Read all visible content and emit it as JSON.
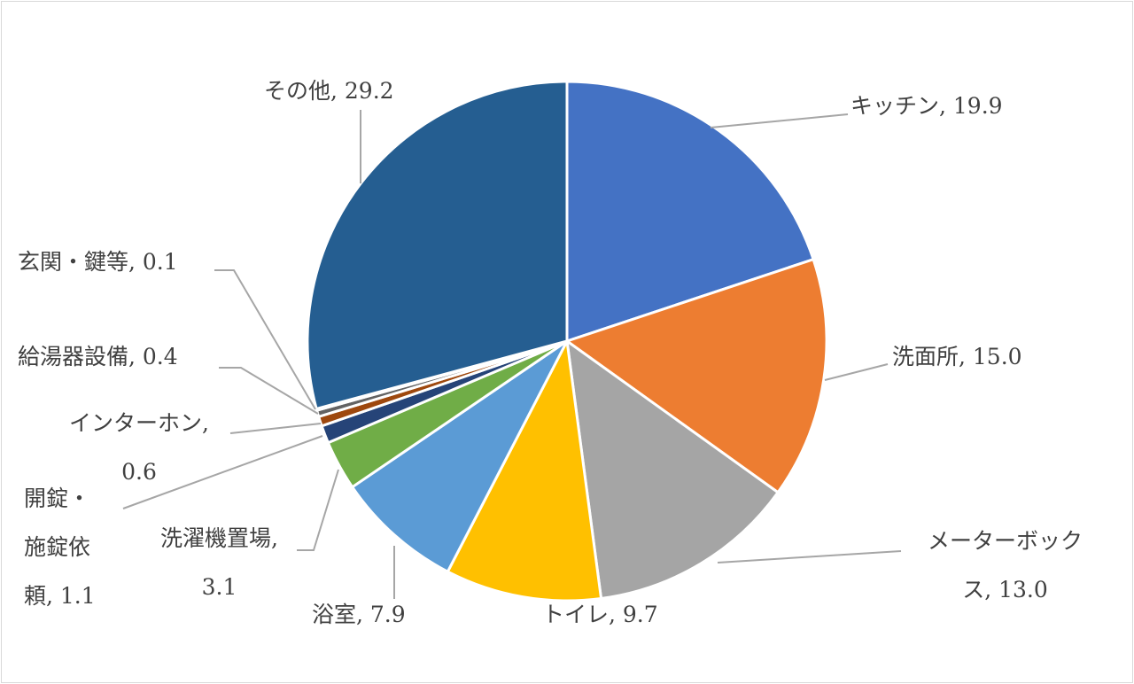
{
  "chart_data": {
    "type": "pie",
    "title": "",
    "start_angle": "12 o'clock",
    "direction": "clockwise",
    "slices": [
      {
        "label": "キッチン",
        "value": 19.9,
        "color": "#4472C4",
        "text": "キッチン, 19.9"
      },
      {
        "label": "洗面所",
        "value": 15.0,
        "color": "#ED7D31",
        "text": "洗面所, 15.0"
      },
      {
        "label": "メーターボックス",
        "value": 13.0,
        "color": "#A5A5A5",
        "text1": "メーターボック",
        "text2": "ス, 13.0"
      },
      {
        "label": "トイレ",
        "value": 9.7,
        "color": "#FFC000",
        "text": "トイレ, 9.7"
      },
      {
        "label": "浴室",
        "value": 7.9,
        "color": "#5B9BD5",
        "text": "浴室, 7.9"
      },
      {
        "label": "洗濯機置場",
        "value": 3.1,
        "color": "#70AD47",
        "text1": "洗濯機置場,",
        "text2": "3.1"
      },
      {
        "label": "開錠・施錠依頼",
        "value": 1.1,
        "color": "#264478",
        "text1": "開錠・",
        "text2": "施錠依",
        "text3": "頼, 1.1"
      },
      {
        "label": "インターホン",
        "value": 0.6,
        "color": "#9E480E",
        "text1": "インターホン,",
        "text2": "0.6"
      },
      {
        "label": "給湯器設備",
        "value": 0.4,
        "color": "#636363",
        "text": "給湯器設備, 0.4"
      },
      {
        "label": "玄関・鍵等",
        "value": 0.1,
        "color": "#997300",
        "text": "玄関・鍵等, 0.1"
      },
      {
        "label": "その他",
        "value": 29.2,
        "color": "#255E91",
        "text": "その他, 29.2"
      }
    ]
  }
}
